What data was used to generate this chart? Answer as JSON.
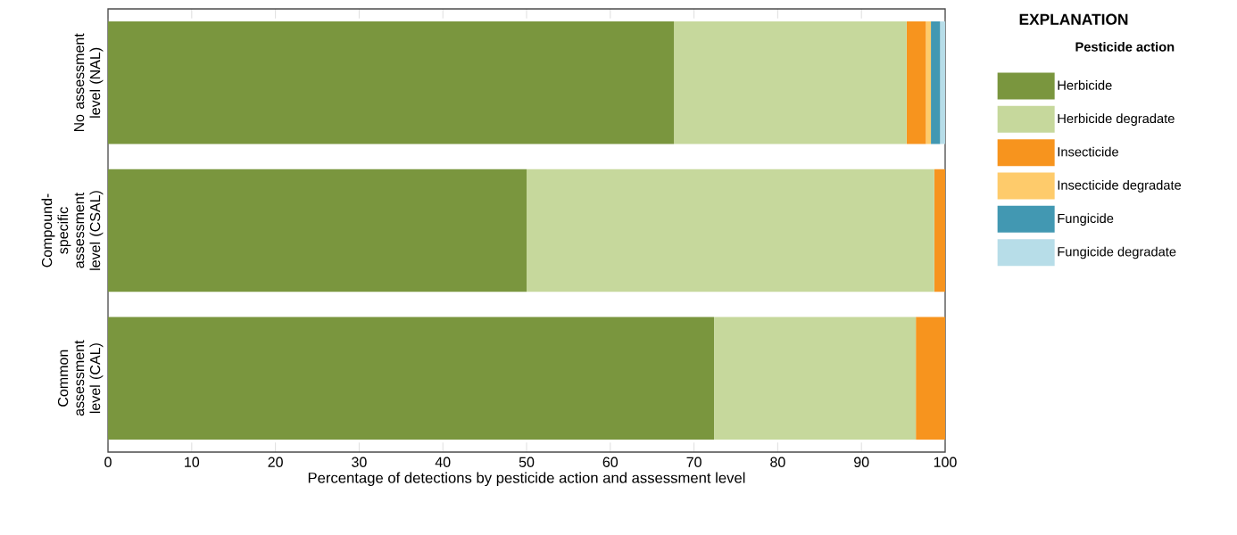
{
  "chart_data": {
    "type": "bar",
    "orientation": "horizontal",
    "stacked": true,
    "xlabel": "Percentage of detections by pesticide action and assessment level",
    "categories": [
      "No assessment level (NAL)",
      "Compound-specific assessment level (CSAL)",
      "Common assessment level (CAL)"
    ],
    "legend_title": "Pesticide action",
    "annotations": [
      "EXPLANATION"
    ],
    "legend": "right",
    "xlim": [
      0,
      100
    ],
    "xticks": [
      0,
      10,
      20,
      30,
      40,
      50,
      60,
      70,
      80,
      90,
      100
    ],
    "series": [
      {
        "name": "Herbicide",
        "color": "#7a963e",
        "values": [
          67.6,
          50.0,
          72.4
        ]
      },
      {
        "name": "Herbicide degradate",
        "color": "#c6d89c",
        "values": [
          27.8,
          48.7,
          24.1
        ]
      },
      {
        "name": "Insecticide",
        "color": "#f7941e",
        "values": [
          2.3,
          1.3,
          3.5
        ]
      },
      {
        "name": "Insecticide degradate",
        "color": "#fecb6b",
        "values": [
          0.6,
          null,
          null
        ]
      },
      {
        "name": "Fungicide",
        "color": "#4298b2",
        "values": [
          1.1,
          null,
          null
        ]
      },
      {
        "name": "Fungicide degradate",
        "color": "#b7dde8",
        "values": [
          0.6,
          null,
          null
        ]
      }
    ]
  }
}
